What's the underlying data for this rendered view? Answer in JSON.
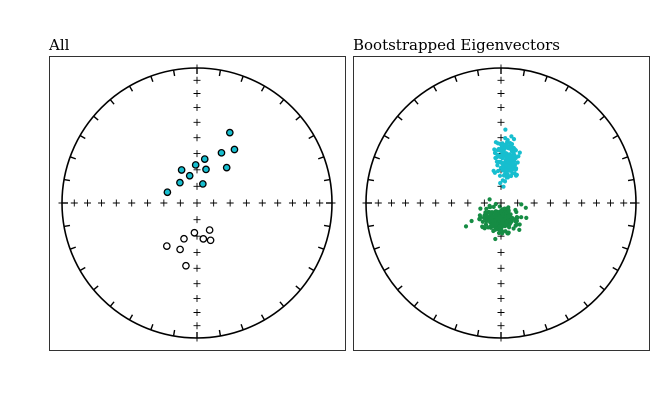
{
  "panels": [
    {
      "title": "All"
    },
    {
      "title": "Bootstrapped Eigenvectors"
    }
  ],
  "chart_data": [
    {
      "type": "scatter",
      "projection": "equal-area stereonet",
      "title": "All",
      "grid": false,
      "series": [
        {
          "role": "down-pointing directions",
          "marker": "filled circle",
          "color": "#17becf",
          "points": [
            {
              "dec": 25,
              "inc": 42
            },
            {
              "dec": 35,
              "inc": 50
            },
            {
              "dec": 26,
              "inc": 56
            },
            {
              "dec": 10,
              "inc": 63
            },
            {
              "dec": 358,
              "inc": 67
            },
            {
              "dec": 15,
              "inc": 69
            },
            {
              "dec": 335,
              "inc": 68
            },
            {
              "dec": 290,
              "inc": 71
            },
            {
              "dec": 320,
              "inc": 74
            },
            {
              "dec": 40,
              "inc": 62
            },
            {
              "dec": 17,
              "inc": 78
            },
            {
              "dec": 345,
              "inc": 73
            }
          ]
        },
        {
          "role": "up-pointing directions",
          "marker": "open circle",
          "color": "#000000",
          "points": [
            {
              "dec": 155,
              "inc": 72
            },
            {
              "dec": 200,
              "inc": 67
            },
            {
              "dec": 215,
              "inc": 58
            },
            {
              "dec": 200,
              "inc": 60
            },
            {
              "dec": 190,
              "inc": 51
            },
            {
              "dec": 160,
              "inc": 66
            },
            {
              "dec": 170,
              "inc": 68
            },
            {
              "dec": 185,
              "inc": 72
            }
          ]
        }
      ]
    },
    {
      "type": "scatter",
      "projection": "equal-area stereonet",
      "title": "Bootstrapped Eigenvectors",
      "grid": false,
      "series": [
        {
          "role": "down-pointing eigenvectors",
          "marker": "dot",
          "color": "#17becf",
          "center": {
            "dec": 8,
            "inc": 63
          },
          "spread": {
            "dx": 0.08,
            "dy": 0.15
          },
          "count": 160
        },
        {
          "role": "up-pointing eigenvectors",
          "marker": "dot",
          "color": "#168c44",
          "center": {
            "dec": 185,
            "inc": 80
          },
          "spread": {
            "dx": 0.13,
            "dy": 0.08
          },
          "count": 220
        }
      ]
    }
  ]
}
